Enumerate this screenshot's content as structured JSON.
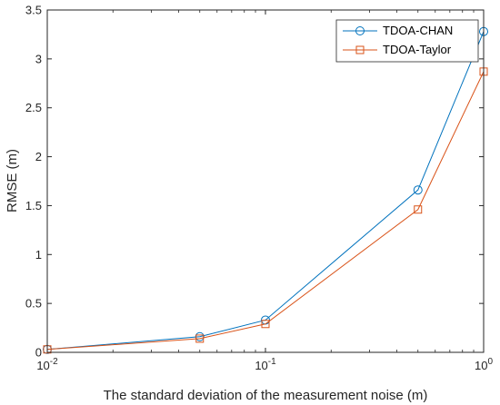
{
  "chart_data": {
    "type": "line",
    "xscale": "log",
    "xlim": [
      0.01,
      1
    ],
    "ylim": [
      0,
      3.5
    ],
    "xlabel": "The standard deviation of the measurement noise (m)",
    "ylabel": "RMSE (m)",
    "x": [
      0.01,
      0.05,
      0.1,
      0.5,
      1
    ],
    "xticks": [
      {
        "base": "10",
        "exp": "-2",
        "value": 0.01
      },
      {
        "base": "10",
        "exp": "-1",
        "value": 0.1
      },
      {
        "base": "10",
        "exp": "0",
        "value": 1
      }
    ],
    "yticks": [
      "0",
      "0.5",
      "1",
      "1.5",
      "2",
      "2.5",
      "3",
      "3.5"
    ],
    "yticks_values": [
      0,
      0.5,
      1,
      1.5,
      2,
      2.5,
      3,
      3.5
    ],
    "legend_position": "top-right",
    "series": [
      {
        "name": "TDOA-CHAN",
        "marker": "circle",
        "color": "#0072BD",
        "values": [
          0.03,
          0.16,
          0.33,
          1.66,
          3.28
        ]
      },
      {
        "name": "TDOA-Taylor",
        "marker": "square",
        "color": "#D95319",
        "values": [
          0.03,
          0.14,
          0.29,
          1.46,
          2.87
        ]
      }
    ]
  }
}
